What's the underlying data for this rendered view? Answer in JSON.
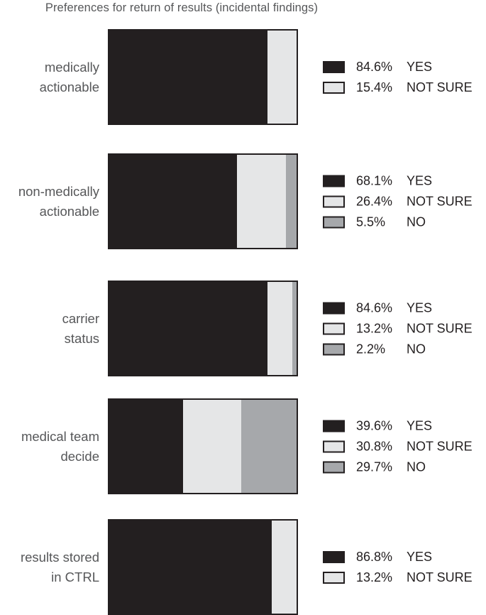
{
  "chart_data": {
    "type": "bar",
    "orientation": "horizontal",
    "stacked": true,
    "title": "Preferences for return of results (incidental findings)",
    "unit": "%",
    "xlim": [
      0,
      100
    ],
    "grid": false,
    "legend_position": "right-of-each-bar",
    "colors": {
      "yes": "#231f20",
      "not_sure": "#e5e6e7",
      "no": "#a6a8ab",
      "outline": "#231f20",
      "label_text": "#565759",
      "legend_text": "#231f20"
    },
    "rows": [
      {
        "label": "medically actionable",
        "label_lines": [
          "medically",
          "actionable"
        ],
        "segments": [
          {
            "key": "yes",
            "value": 84.6,
            "display": "84.6%",
            "label": "YES"
          },
          {
            "key": "not_sure",
            "value": 15.4,
            "display": "15.4%",
            "label": "NOT SURE"
          }
        ]
      },
      {
        "label": "non-medically actionable",
        "label_lines": [
          "non-medically",
          "actionable"
        ],
        "segments": [
          {
            "key": "yes",
            "value": 68.1,
            "display": "68.1%",
            "label": "YES"
          },
          {
            "key": "not_sure",
            "value": 26.4,
            "display": "26.4%",
            "label": "NOT SURE"
          },
          {
            "key": "no",
            "value": 5.5,
            "display": "5.5%",
            "label": "NO"
          }
        ]
      },
      {
        "label": "carrier status",
        "label_lines": [
          "carrier",
          "status"
        ],
        "segments": [
          {
            "key": "yes",
            "value": 84.6,
            "display": "84.6%",
            "label": "YES"
          },
          {
            "key": "not_sure",
            "value": 13.2,
            "display": "13.2%",
            "label": "NOT SURE"
          },
          {
            "key": "no",
            "value": 2.2,
            "display": "2.2%",
            "label": "NO"
          }
        ]
      },
      {
        "label": "medical team decide",
        "label_lines": [
          "medical team",
          "decide"
        ],
        "segments": [
          {
            "key": "yes",
            "value": 39.6,
            "display": "39.6%",
            "label": "YES"
          },
          {
            "key": "not_sure",
            "value": 30.8,
            "display": "30.8%",
            "label": "NOT SURE"
          },
          {
            "key": "no",
            "value": 29.7,
            "display": "29.7%",
            "label": "NO"
          }
        ]
      },
      {
        "label": "results stored in CTRL",
        "label_lines": [
          "results stored",
          "in CTRL"
        ],
        "segments": [
          {
            "key": "yes",
            "value": 86.8,
            "display": "86.8%",
            "label": "YES"
          },
          {
            "key": "not_sure",
            "value": 13.2,
            "display": "13.2%",
            "label": "NOT SURE"
          }
        ]
      }
    ]
  }
}
